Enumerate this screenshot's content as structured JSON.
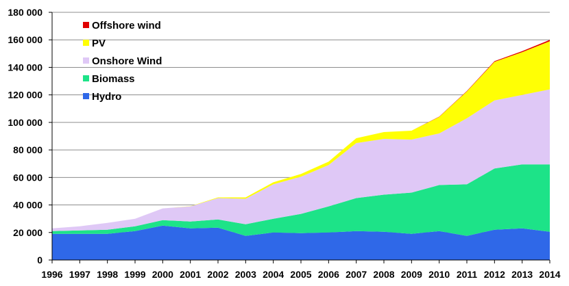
{
  "chart_data": {
    "type": "area",
    "stacked": true,
    "title": "",
    "xlabel": "",
    "ylabel": "",
    "x": [
      1996,
      1997,
      1998,
      1999,
      2000,
      2001,
      2002,
      2003,
      2004,
      2005,
      2006,
      2007,
      2008,
      2009,
      2010,
      2011,
      2012,
      2013,
      2014
    ],
    "x_tick_labels": [
      "1996",
      "1997",
      "1998",
      "1999",
      "2000",
      "2001",
      "2002",
      "2003",
      "2004",
      "2005",
      "2006",
      "2007",
      "2008",
      "2009",
      "2010",
      "2011",
      "2012",
      "2013",
      "2014"
    ],
    "ylim": [
      0,
      180000
    ],
    "y_ticks": [
      0,
      20000,
      40000,
      60000,
      80000,
      100000,
      120000,
      140000,
      160000,
      180000
    ],
    "y_tick_labels": [
      "0",
      "20 000",
      "40 000",
      "60 000",
      "80 000",
      "100 000",
      "120 000",
      "140 000",
      "160 000",
      "180 000"
    ],
    "grid": "horizontal",
    "legend_position": "top-left",
    "series": [
      {
        "name": "Hydro",
        "color": "#2f68e8",
        "values": [
          19000,
          19000,
          19000,
          21000,
          25000,
          23000,
          23500,
          17500,
          20000,
          19500,
          20000,
          21000,
          20500,
          19000,
          21000,
          17500,
          22000,
          23000,
          20500
        ]
      },
      {
        "name": "Biomass",
        "color": "#1de388",
        "values": [
          2000,
          2500,
          3000,
          3500,
          4000,
          5000,
          6000,
          8500,
          10000,
          14000,
          19000,
          24000,
          27000,
          30000,
          33500,
          37500,
          44500,
          46500,
          49000
        ]
      },
      {
        "name": "Onshore Wind",
        "color": "#dfc8f6",
        "values": [
          2000,
          3000,
          5000,
          5500,
          8500,
          11000,
          15500,
          18500,
          25000,
          27000,
          30000,
          40000,
          40500,
          38500,
          37500,
          48000,
          49500,
          50500,
          54500
        ]
      },
      {
        "name": "PV",
        "color": "#ffff05",
        "values": [
          0,
          0,
          0,
          0,
          0,
          100,
          500,
          1000,
          1500,
          2000,
          2500,
          3500,
          5000,
          6500,
          12000,
          19500,
          28000,
          31000,
          35000
        ]
      },
      {
        "name": "Offshore wind",
        "color": "#e00000",
        "values": [
          0,
          0,
          0,
          0,
          0,
          0,
          0,
          0,
          0,
          0,
          0,
          0,
          0,
          0,
          200,
          300,
          500,
          800,
          1000
        ]
      }
    ],
    "legend_order": [
      "Offshore wind",
      "PV",
      "Onshore Wind",
      "Biomass",
      "Hydro"
    ]
  }
}
